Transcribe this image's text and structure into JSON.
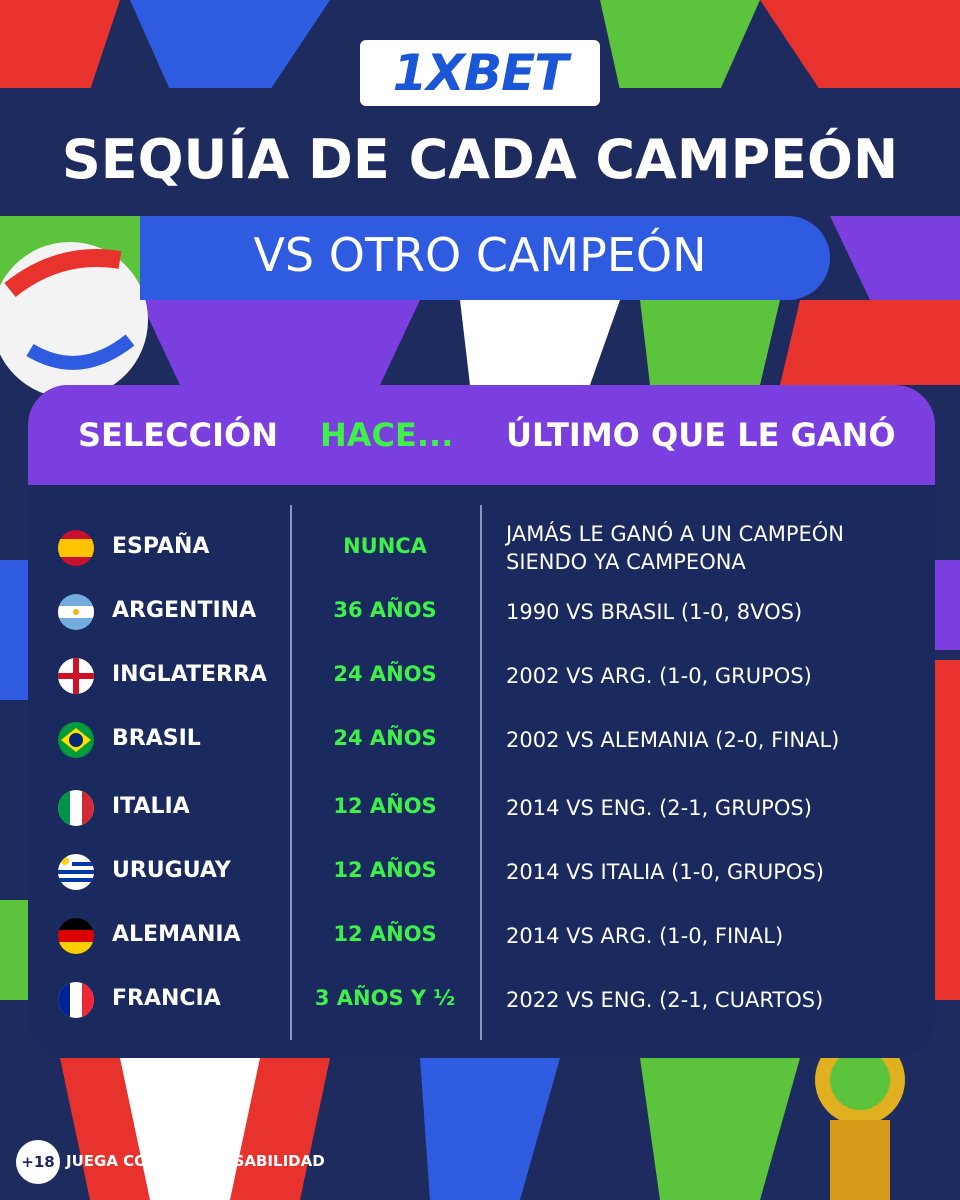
{
  "header": {
    "logo": "1XBET",
    "title": "SEQUÍA DE CADA CAMPEÓN",
    "subtitle": "VS OTRO CAMPEÓN"
  },
  "table": {
    "columns": [
      "SELECCIÓN",
      "HACE...",
      "ÚLTIMO QUE LE GANÓ"
    ],
    "rows": [
      [
        "ESPAÑA",
        "NUNCA",
        "JAMÁS LE GANÓ A UN CAMPEÓN SIENDO YA CAMPEONA"
      ],
      [
        "ARGENTINA",
        "36 AÑOS",
        "1990 VS BRASIL (1-0, 8VOS)"
      ],
      [
        "INGLATERRA",
        "24 AÑOS",
        "2002 VS ARG. (1-0, GRUPOS)"
      ],
      [
        "BRASIL",
        "24 AÑOS",
        "2002 VS ALEMANIA (2-0, FINAL)"
      ],
      [
        "ITALIA",
        "12 AÑOS",
        "2014 VS ENG. (2-1, GRUPOS)"
      ],
      [
        "URUGUAY",
        "12 AÑOS",
        "2014 VS ITALIA (1-0, GRUPOS)"
      ],
      [
        "ALEMANIA",
        "12 AÑOS",
        "2014 VS ARG. (1-0, FINAL)"
      ],
      [
        "FRANCIA",
        "3 AÑOS Y ½",
        "2022 VS ENG. (2-1, CUARTOS)"
      ]
    ]
  },
  "footer": {
    "age": "+18",
    "notice": "JUEGA CON RESPONSABILIDAD"
  }
}
